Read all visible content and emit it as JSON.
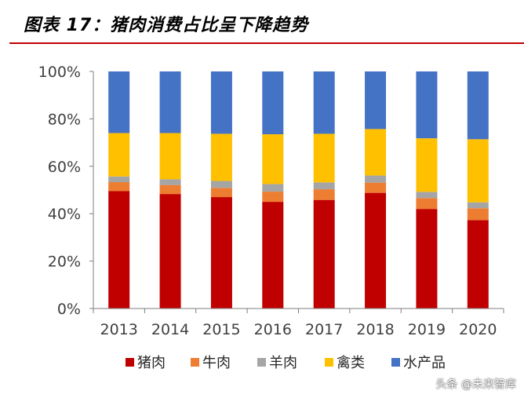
{
  "title": "图表 17：猪肉消费占比呈下降趋势",
  "watermark": "头条 @未来智库",
  "chart_data": {
    "type": "bar",
    "stacked": true,
    "title": "图表 17：猪肉消费占比呈下降趋势",
    "categories": [
      "2013",
      "2014",
      "2015",
      "2016",
      "2017",
      "2018",
      "2019",
      "2020"
    ],
    "y_ticks": [
      "0%",
      "20%",
      "40%",
      "60%",
      "80%",
      "100%"
    ],
    "ylim": [
      0,
      100
    ],
    "legend_position": "bottom",
    "series": [
      {
        "name": "猪肉",
        "color": "#c00000",
        "values": [
          49.5,
          48.3,
          47.0,
          45.0,
          45.8,
          48.8,
          42.0,
          37.3
        ]
      },
      {
        "name": "牛肉",
        "color": "#ed7d31",
        "values": [
          3.8,
          3.8,
          3.9,
          4.3,
          4.5,
          4.3,
          4.6,
          5.0
        ]
      },
      {
        "name": "羊肉",
        "color": "#a5a5a5",
        "values": [
          2.4,
          2.4,
          2.9,
          3.2,
          2.9,
          3.0,
          2.6,
          2.5
        ]
      },
      {
        "name": "禽类",
        "color": "#ffc000",
        "values": [
          18.3,
          19.5,
          19.9,
          21.0,
          20.5,
          19.6,
          22.6,
          26.6
        ]
      },
      {
        "name": "水产品",
        "color": "#4472c4",
        "values": [
          26.0,
          26.0,
          26.3,
          26.5,
          26.3,
          24.3,
          28.2,
          28.6
        ]
      }
    ]
  }
}
